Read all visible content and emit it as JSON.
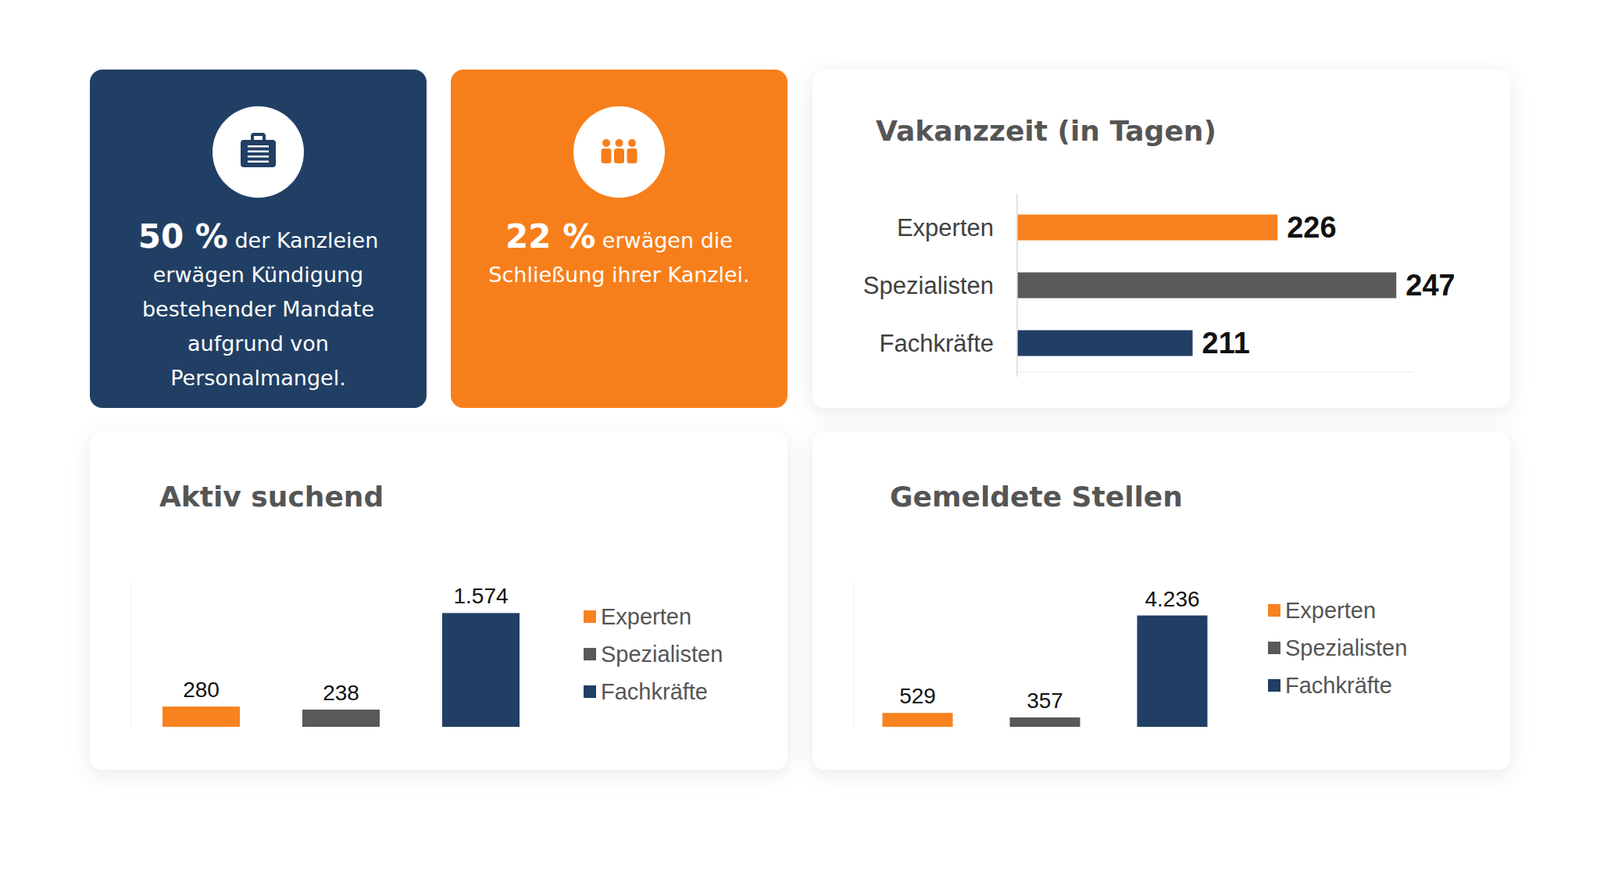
{
  "cards": [
    {
      "value": "50 %",
      "text": "der Kanzleien erwägen Kündigung bestehender Mandate aufgrund von Personalmangel.",
      "color": "#213f64"
    },
    {
      "value": "22 %",
      "text": "erwägen die Schließung ihrer Kanzlei.",
      "color": "#f77f1b"
    }
  ],
  "chart_data": [
    {
      "type": "bar",
      "title": "Vakanzzeit (in Tagen)",
      "orientation": "horizontal",
      "categories": [
        "Experten",
        "Spezialisten",
        "Fachkräfte"
      ],
      "values": [
        226,
        247,
        211
      ],
      "colors": [
        "#f7821f",
        "#595959",
        "#213f64"
      ],
      "xlim": [
        180,
        250
      ],
      "data_labels": true,
      "tick_labels": "y"
    },
    {
      "type": "bar",
      "title": "Aktiv suchend",
      "categories": [
        null
      ],
      "series": [
        {
          "name": "Experten",
          "color": "#f7821f",
          "values": [
            280
          ]
        },
        {
          "name": "Spezialisten",
          "color": "#595959",
          "values": [
            238
          ]
        },
        {
          "name": "Fachkräfte",
          "color": "#213f64",
          "values": [
            1574
          ],
          "value_labels": [
            "1.574"
          ]
        }
      ],
      "ylim": [
        0,
        2000
      ],
      "data_labels": true,
      "tick_labels": false,
      "legend": "right"
    },
    {
      "type": "bar",
      "title": "Gemeldete Stellen",
      "categories": [
        null
      ],
      "series": [
        {
          "name": "Experten",
          "color": "#f7821f",
          "values": [
            529
          ]
        },
        {
          "name": "Spezialisten",
          "color": "#595959",
          "values": [
            357
          ]
        },
        {
          "name": "Fachkräfte",
          "color": "#213f64",
          "values": [
            4236
          ],
          "value_labels": [
            "4.236"
          ]
        }
      ],
      "ylim": [
        0,
        5500
      ],
      "data_labels": true,
      "tick_labels": false,
      "legend": "right"
    }
  ]
}
